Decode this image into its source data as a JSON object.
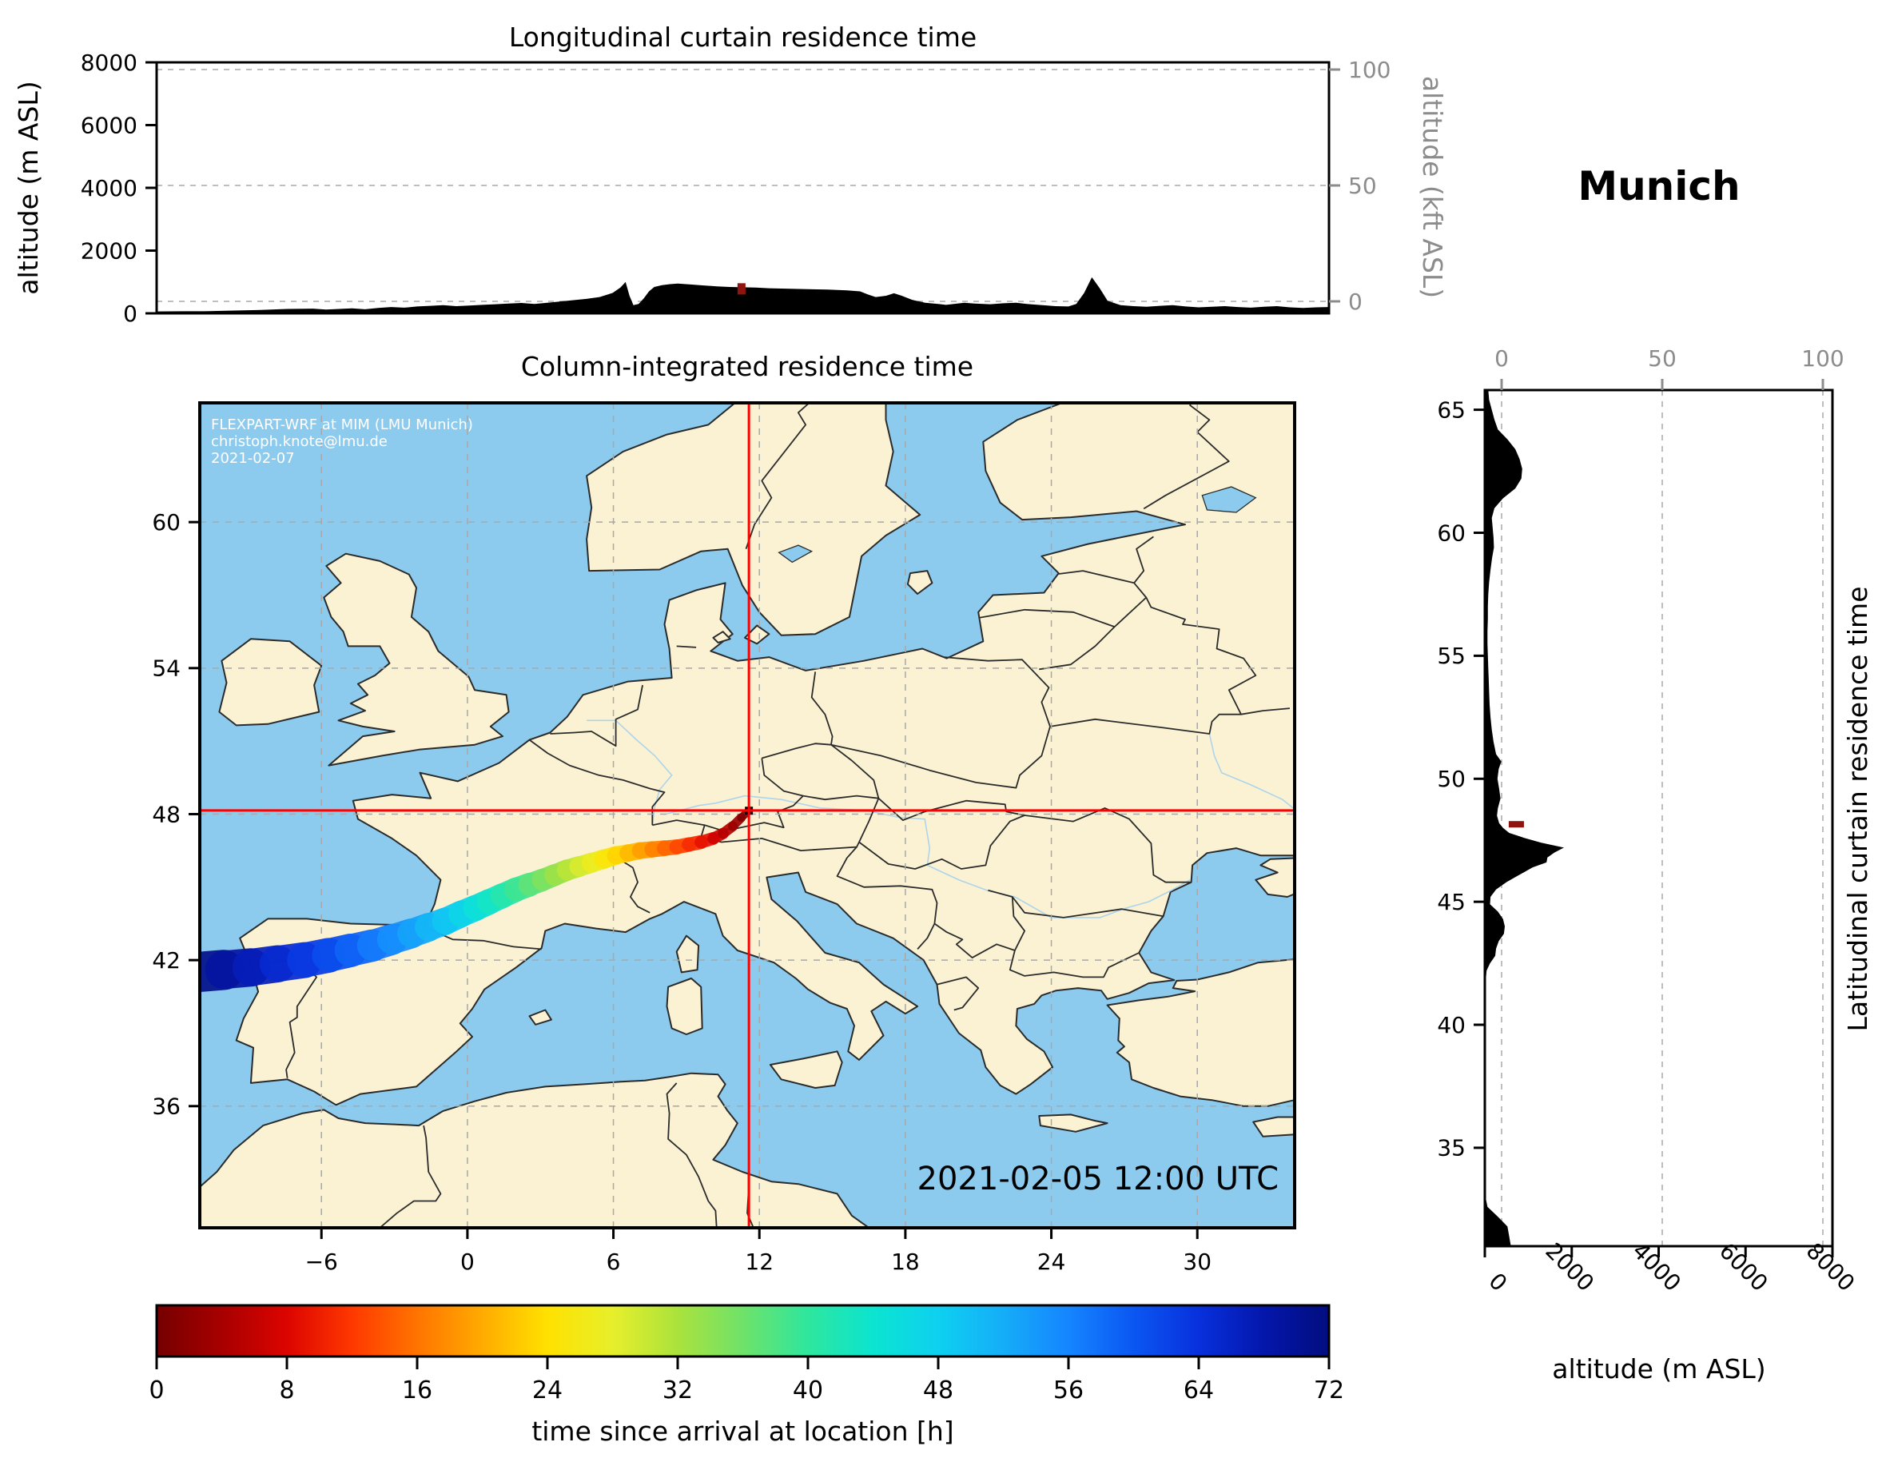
{
  "figure": {
    "station_title": "Munich",
    "map_overlay": {
      "watermark_line1": "FLEXPART-WRF at MIM (LMU Munich)",
      "watermark_line2": "christoph.knote@lmu.de",
      "watermark_line3": "2021-02-07",
      "datetime_label": "2021-02-05 12:00 UTC"
    }
  },
  "colors": {
    "land": "#FAF2D3",
    "water": "#8CCBED",
    "coast_border": "#2b2b2b",
    "river": "#aed4ec",
    "gridline": "#a8a8a8",
    "axis_gray": "#8c8c8c",
    "crosshair_red": "#ff0000",
    "release_marker": "#8f1410",
    "terrain": "#000000"
  },
  "chart_data": [
    {
      "id": "longitudinal_curtain",
      "type": "area",
      "title": "Longitudinal curtain residence time",
      "ylabel_left": "altitude (m ASL)",
      "ylabel_right": "altitude (kft ASL)",
      "lon_range": [
        -11,
        34
      ],
      "alt_range_m": [
        0,
        8000
      ],
      "yticks_m": [
        "0",
        "2000",
        "4000",
        "6000",
        "8000"
      ],
      "yticks_m_values": [
        0,
        2000,
        4000,
        6000,
        8000
      ],
      "yticks_kft": [
        "0",
        "50",
        "100"
      ],
      "yticks_kft_values": [
        0,
        50,
        100
      ],
      "release_marker": {
        "lon": 11.45,
        "alt_low_m": 600,
        "alt_high_m": 960
      },
      "terrain_lon_alt_m": [
        [
          -11,
          60
        ],
        [
          -10,
          65
        ],
        [
          -9,
          70
        ],
        [
          -8,
          90
        ],
        [
          -7,
          110
        ],
        [
          -6,
          140
        ],
        [
          -5,
          150
        ],
        [
          -4.5,
          120
        ],
        [
          -4,
          140
        ],
        [
          -3.5,
          160
        ],
        [
          -3,
          130
        ],
        [
          -2.5,
          170
        ],
        [
          -2,
          200
        ],
        [
          -1.5,
          180
        ],
        [
          -1,
          220
        ],
        [
          -0.5,
          240
        ],
        [
          0,
          260
        ],
        [
          0.5,
          230
        ],
        [
          1,
          250
        ],
        [
          1.5,
          270
        ],
        [
          2,
          290
        ],
        [
          2.5,
          310
        ],
        [
          3,
          330
        ],
        [
          3.5,
          300
        ],
        [
          4,
          340
        ],
        [
          4.5,
          380
        ],
        [
          5,
          420
        ],
        [
          5.5,
          460
        ],
        [
          6,
          520
        ],
        [
          6.5,
          650
        ],
        [
          6.8,
          820
        ],
        [
          7.0,
          1000
        ],
        [
          7.15,
          560
        ],
        [
          7.3,
          260
        ],
        [
          7.5,
          300
        ],
        [
          7.7,
          480
        ],
        [
          7.9,
          700
        ],
        [
          8.1,
          840
        ],
        [
          8.4,
          900
        ],
        [
          8.7,
          930
        ],
        [
          9,
          950
        ],
        [
          9.5,
          920
        ],
        [
          10,
          890
        ],
        [
          10.5,
          860
        ],
        [
          11,
          840
        ],
        [
          11.5,
          830
        ],
        [
          12,
          820
        ],
        [
          12.5,
          800
        ],
        [
          13,
          790
        ],
        [
          13.5,
          780
        ],
        [
          14,
          770
        ],
        [
          14.75,
          760
        ],
        [
          15.5,
          730
        ],
        [
          16,
          700
        ],
        [
          16.3,
          600
        ],
        [
          16.6,
          520
        ],
        [
          17,
          560
        ],
        [
          17.3,
          640
        ],
        [
          17.6,
          560
        ],
        [
          18,
          430
        ],
        [
          18.5,
          340
        ],
        [
          19,
          300
        ],
        [
          19.3,
          270
        ],
        [
          19.6,
          300
        ],
        [
          20,
          340
        ],
        [
          20.4,
          310
        ],
        [
          21,
          290
        ],
        [
          21.5,
          320
        ],
        [
          22,
          340
        ],
        [
          22.4,
          300
        ],
        [
          23,
          260
        ],
        [
          23.5,
          230
        ],
        [
          24,
          220
        ],
        [
          24.3,
          300
        ],
        [
          24.6,
          650
        ],
        [
          24.9,
          1150
        ],
        [
          25.2,
          800
        ],
        [
          25.5,
          400
        ],
        [
          26,
          260
        ],
        [
          26.5,
          230
        ],
        [
          27,
          210
        ],
        [
          27.5,
          240
        ],
        [
          28,
          260
        ],
        [
          28.5,
          220
        ],
        [
          29,
          190
        ],
        [
          29.5,
          210
        ],
        [
          30,
          230
        ],
        [
          30.5,
          200
        ],
        [
          31,
          180
        ],
        [
          31.5,
          210
        ],
        [
          32,
          230
        ],
        [
          32.5,
          190
        ],
        [
          33,
          170
        ],
        [
          33.5,
          190
        ],
        [
          34,
          200
        ]
      ]
    },
    {
      "id": "column_integrated_map",
      "type": "heatmap",
      "title": "Column-integrated residence time",
      "lon_range": [
        -11,
        34
      ],
      "lat_range": [
        31,
        64.9
      ],
      "xticks": [
        "−6",
        "0",
        "6",
        "12",
        "18",
        "24",
        "30"
      ],
      "xticks_values": [
        -6,
        0,
        6,
        12,
        18,
        24,
        30
      ],
      "yticks": [
        "36",
        "42",
        "48",
        "54",
        "60"
      ],
      "yticks_values": [
        36,
        42,
        48,
        54,
        60
      ],
      "gridlines_lon": [
        -6,
        0,
        6,
        12,
        18,
        24,
        30
      ],
      "gridlines_lat": [
        36,
        42,
        48,
        54,
        60
      ],
      "crosshair": {
        "lon": 11.57,
        "lat": 48.15
      },
      "trajectory_format": "[time_since_arrival_h, lon_deg, lat_deg, plume_width_deg]",
      "trajectory": [
        [
          0,
          11.57,
          48.14,
          0.3
        ],
        [
          2,
          11.25,
          47.85,
          0.35
        ],
        [
          4,
          10.9,
          47.5,
          0.4
        ],
        [
          6,
          10.5,
          47.2,
          0.45
        ],
        [
          8,
          10.1,
          47.0,
          0.5
        ],
        [
          10,
          9.6,
          46.85,
          0.55
        ],
        [
          12,
          9.1,
          46.75,
          0.6
        ],
        [
          14,
          8.6,
          46.65,
          0.6
        ],
        [
          16,
          8.1,
          46.6,
          0.65
        ],
        [
          18,
          7.6,
          46.55,
          0.65
        ],
        [
          20,
          7.1,
          46.5,
          0.7
        ],
        [
          22,
          6.6,
          46.4,
          0.7
        ],
        [
          24,
          6.1,
          46.3,
          0.75
        ],
        [
          26,
          5.6,
          46.15,
          0.8
        ],
        [
          28,
          5.1,
          46.0,
          0.8
        ],
        [
          30,
          4.6,
          45.85,
          0.85
        ],
        [
          32,
          4.1,
          45.7,
          0.85
        ],
        [
          34,
          3.6,
          45.5,
          0.9
        ],
        [
          36,
          3.1,
          45.3,
          0.9
        ],
        [
          38,
          2.55,
          45.1,
          0.95
        ],
        [
          40,
          2.0,
          44.9,
          1.0
        ],
        [
          42,
          1.45,
          44.65,
          1.0
        ],
        [
          44,
          0.9,
          44.4,
          1.05
        ],
        [
          46,
          0.35,
          44.15,
          1.05
        ],
        [
          48,
          -0.25,
          43.9,
          1.1
        ],
        [
          50,
          -0.9,
          43.6,
          1.1
        ],
        [
          52,
          -1.6,
          43.35,
          1.15
        ],
        [
          54,
          -2.3,
          43.1,
          1.2
        ],
        [
          56,
          -3.1,
          42.85,
          1.25
        ],
        [
          58,
          -3.9,
          42.6,
          1.3
        ],
        [
          60,
          -4.8,
          42.4,
          1.35
        ],
        [
          62,
          -5.7,
          42.2,
          1.4
        ],
        [
          64,
          -6.7,
          42.0,
          1.45
        ],
        [
          66,
          -7.8,
          41.85,
          1.5
        ],
        [
          68,
          -8.9,
          41.7,
          1.55
        ],
        [
          70,
          -10.0,
          41.6,
          1.6
        ],
        [
          72,
          -11.2,
          41.5,
          1.7
        ]
      ]
    },
    {
      "id": "latitudinal_curtain",
      "type": "area",
      "right_label": "Latitudinal curtain residence time",
      "xlabel": "altitude (m ASL)",
      "lat_range": [
        31,
        65.8
      ],
      "alt_range_m": [
        0,
        8000
      ],
      "xticks_m": [
        "0",
        "2000",
        "4000",
        "6000",
        "8000"
      ],
      "xticks_m_values": [
        0,
        2000,
        4000,
        6000,
        8000
      ],
      "xticks_kft": [
        "0",
        "50",
        "100"
      ],
      "xticks_kft_values": [
        0,
        50,
        100
      ],
      "yticks": [
        "65",
        "60",
        "55",
        "50",
        "45",
        "40",
        "35"
      ],
      "yticks_values": [
        65,
        60,
        55,
        50,
        45,
        40,
        35
      ],
      "release_marker": {
        "lat": 48.15,
        "alt_low_m": 550,
        "alt_high_m": 900
      },
      "terrain_lat_alt_m": [
        [
          65.8,
          80
        ],
        [
          65.4,
          100
        ],
        [
          65,
          160
        ],
        [
          64.6,
          220
        ],
        [
          64.2,
          300
        ],
        [
          63.8,
          520
        ],
        [
          63.4,
          700
        ],
        [
          63,
          800
        ],
        [
          62.6,
          860
        ],
        [
          62.2,
          840
        ],
        [
          61.8,
          700
        ],
        [
          61.4,
          420
        ],
        [
          61,
          220
        ],
        [
          60.6,
          160
        ],
        [
          60.2,
          180
        ],
        [
          59.8,
          200
        ],
        [
          59.4,
          210
        ],
        [
          59,
          170
        ],
        [
          58.5,
          130
        ],
        [
          58,
          100
        ],
        [
          57.5,
          80
        ],
        [
          57,
          70
        ],
        [
          56.5,
          70
        ],
        [
          56,
          60
        ],
        [
          55.5,
          60
        ],
        [
          55,
          70
        ],
        [
          54.5,
          80
        ],
        [
          54,
          90
        ],
        [
          53.5,
          100
        ],
        [
          53,
          110
        ],
        [
          52.5,
          130
        ],
        [
          52,
          160
        ],
        [
          51.5,
          200
        ],
        [
          51,
          260
        ],
        [
          50.7,
          380
        ],
        [
          50.4,
          320
        ],
        [
          50,
          290
        ],
        [
          49.6,
          330
        ],
        [
          49.2,
          360
        ],
        [
          48.8,
          300
        ],
        [
          48.5,
          280
        ],
        [
          48.2,
          330
        ],
        [
          48,
          420
        ],
        [
          47.8,
          560
        ],
        [
          47.6,
          900
        ],
        [
          47.4,
          1300
        ],
        [
          47.2,
          1820
        ],
        [
          47,
          1600
        ],
        [
          46.8,
          1440
        ],
        [
          46.6,
          1420
        ],
        [
          46.4,
          1100
        ],
        [
          46.1,
          800
        ],
        [
          45.8,
          500
        ],
        [
          45.5,
          260
        ],
        [
          45.2,
          130
        ],
        [
          44.9,
          120
        ],
        [
          44.6,
          300
        ],
        [
          44.3,
          420
        ],
        [
          44,
          460
        ],
        [
          43.7,
          440
        ],
        [
          43.4,
          320
        ],
        [
          43.1,
          260
        ],
        [
          42.8,
          240
        ],
        [
          42.5,
          120
        ],
        [
          42.2,
          40
        ],
        [
          41.8,
          20
        ],
        [
          41,
          15
        ],
        [
          40,
          12
        ],
        [
          39,
          12
        ],
        [
          38,
          10
        ],
        [
          36,
          10
        ],
        [
          34,
          10
        ],
        [
          33,
          15
        ],
        [
          32.6,
          60
        ],
        [
          32.2,
          300
        ],
        [
          31.8,
          520
        ],
        [
          31.4,
          560
        ],
        [
          31,
          600
        ]
      ]
    },
    {
      "id": "colorbar",
      "type": "colorbar",
      "label": "time since arrival at location [h]",
      "range_h": [
        0,
        72
      ],
      "ticks": [
        "0",
        "8",
        "16",
        "24",
        "32",
        "40",
        "48",
        "56",
        "64",
        "72"
      ],
      "ticks_values": [
        0,
        8,
        16,
        24,
        32,
        40,
        48,
        56,
        64,
        72
      ],
      "stops": [
        {
          "t": 0,
          "c": "#750000"
        },
        {
          "t": 4,
          "c": "#a80000"
        },
        {
          "t": 8,
          "c": "#dc0400"
        },
        {
          "t": 12,
          "c": "#ff3800"
        },
        {
          "t": 16,
          "c": "#ff7400"
        },
        {
          "t": 20,
          "c": "#ffab00"
        },
        {
          "t": 24,
          "c": "#ffe100"
        },
        {
          "t": 28,
          "c": "#e7ef2b"
        },
        {
          "t": 32,
          "c": "#abe23c"
        },
        {
          "t": 36,
          "c": "#6fe26a"
        },
        {
          "t": 40,
          "c": "#2ee69e"
        },
        {
          "t": 44,
          "c": "#0ce4d0"
        },
        {
          "t": 48,
          "c": "#0ed0f0"
        },
        {
          "t": 52,
          "c": "#15adf8"
        },
        {
          "t": 56,
          "c": "#1585ff"
        },
        {
          "t": 60,
          "c": "#0b57f2"
        },
        {
          "t": 64,
          "c": "#0830dc"
        },
        {
          "t": 68,
          "c": "#0417ac"
        },
        {
          "t": 72,
          "c": "#020d7e"
        }
      ]
    }
  ]
}
